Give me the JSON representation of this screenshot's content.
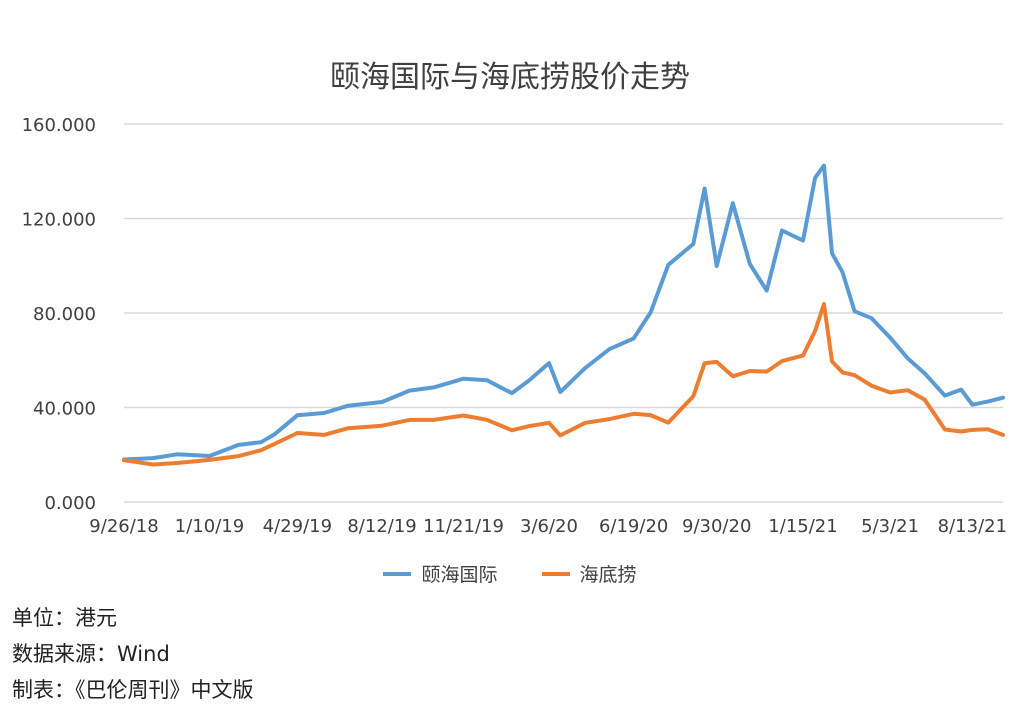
{
  "chart_data": {
    "type": "line",
    "title": "颐海国际与海底捞股价走势",
    "xlabel": "",
    "ylabel": "",
    "x_ticks": [
      "9/26/18",
      "1/10/19",
      "4/29/19",
      "8/12/19",
      "11/21/19",
      "3/6/20",
      "6/19/20",
      "9/30/20",
      "1/15/21",
      "5/3/21",
      "8/13/21"
    ],
    "y_ticks": [
      "0.000",
      "40.000",
      "80.000",
      "120.000",
      "160.000"
    ],
    "ylim": [
      0,
      160
    ],
    "grid": "horizontal",
    "legend_position": "bottom",
    "x": [
      "9/26/18",
      "11/1/18",
      "12/1/18",
      "1/10/19",
      "2/15/19",
      "3/15/19",
      "4/1/19",
      "4/29/19",
      "6/1/19",
      "7/1/19",
      "8/12/19",
      "9/15/19",
      "10/15/19",
      "11/21/19",
      "12/20/19",
      "1/20/20",
      "2/10/20",
      "3/6/20",
      "3/20/20",
      "4/20/20",
      "5/20/20",
      "6/19/20",
      "7/10/20",
      "8/1/20",
      "9/1/20",
      "9/15/20",
      "9/30/20",
      "10/20/20",
      "11/10/20",
      "12/1/20",
      "12/20/20",
      "1/15/21",
      "1/30/21",
      "2/10/21",
      "2/20/21",
      "3/5/21",
      "3/20/21",
      "4/10/21",
      "5/3/21",
      "5/25/21",
      "6/15/21",
      "7/10/21",
      "7/30/21",
      "8/13/21",
      "9/1/21",
      "9/20/21"
    ],
    "series": [
      {
        "name": "颐海国际",
        "color": "#5b9bd5",
        "values": [
          18,
          18,
          21,
          19,
          24,
          26,
          28,
          37,
          38,
          40,
          43,
          47,
          48,
          53,
          51,
          46,
          52,
          58,
          47,
          57,
          64,
          70,
          80,
          100,
          110,
          132,
          100,
          127,
          100,
          90,
          115,
          110,
          138,
          142,
          105,
          98,
          80,
          78,
          70,
          60,
          55,
          45,
          47,
          42,
          42,
          44
        ]
      },
      {
        "name": "海底捞",
        "color": "#ed7d31",
        "values": [
          17,
          16,
          17,
          17,
          20,
          22,
          24,
          30,
          28,
          31,
          33,
          34,
          35,
          37,
          34,
          31,
          32,
          33,
          29,
          33,
          35,
          38,
          36,
          34,
          45,
          58,
          60,
          53,
          55,
          56,
          59,
          62,
          73,
          83,
          60,
          55,
          53,
          50,
          46,
          47,
          44,
          30,
          30,
          31,
          30,
          29
        ]
      }
    ]
  },
  "legend": {
    "items": [
      {
        "label": "颐海国际",
        "color": "#5b9bd5"
      },
      {
        "label": "海底捞",
        "color": "#ed7d31"
      }
    ]
  },
  "notes": {
    "unit": "单位：港元",
    "source": "数据来源：Wind",
    "producer": "制表：《巴伦周刊》中文版"
  }
}
